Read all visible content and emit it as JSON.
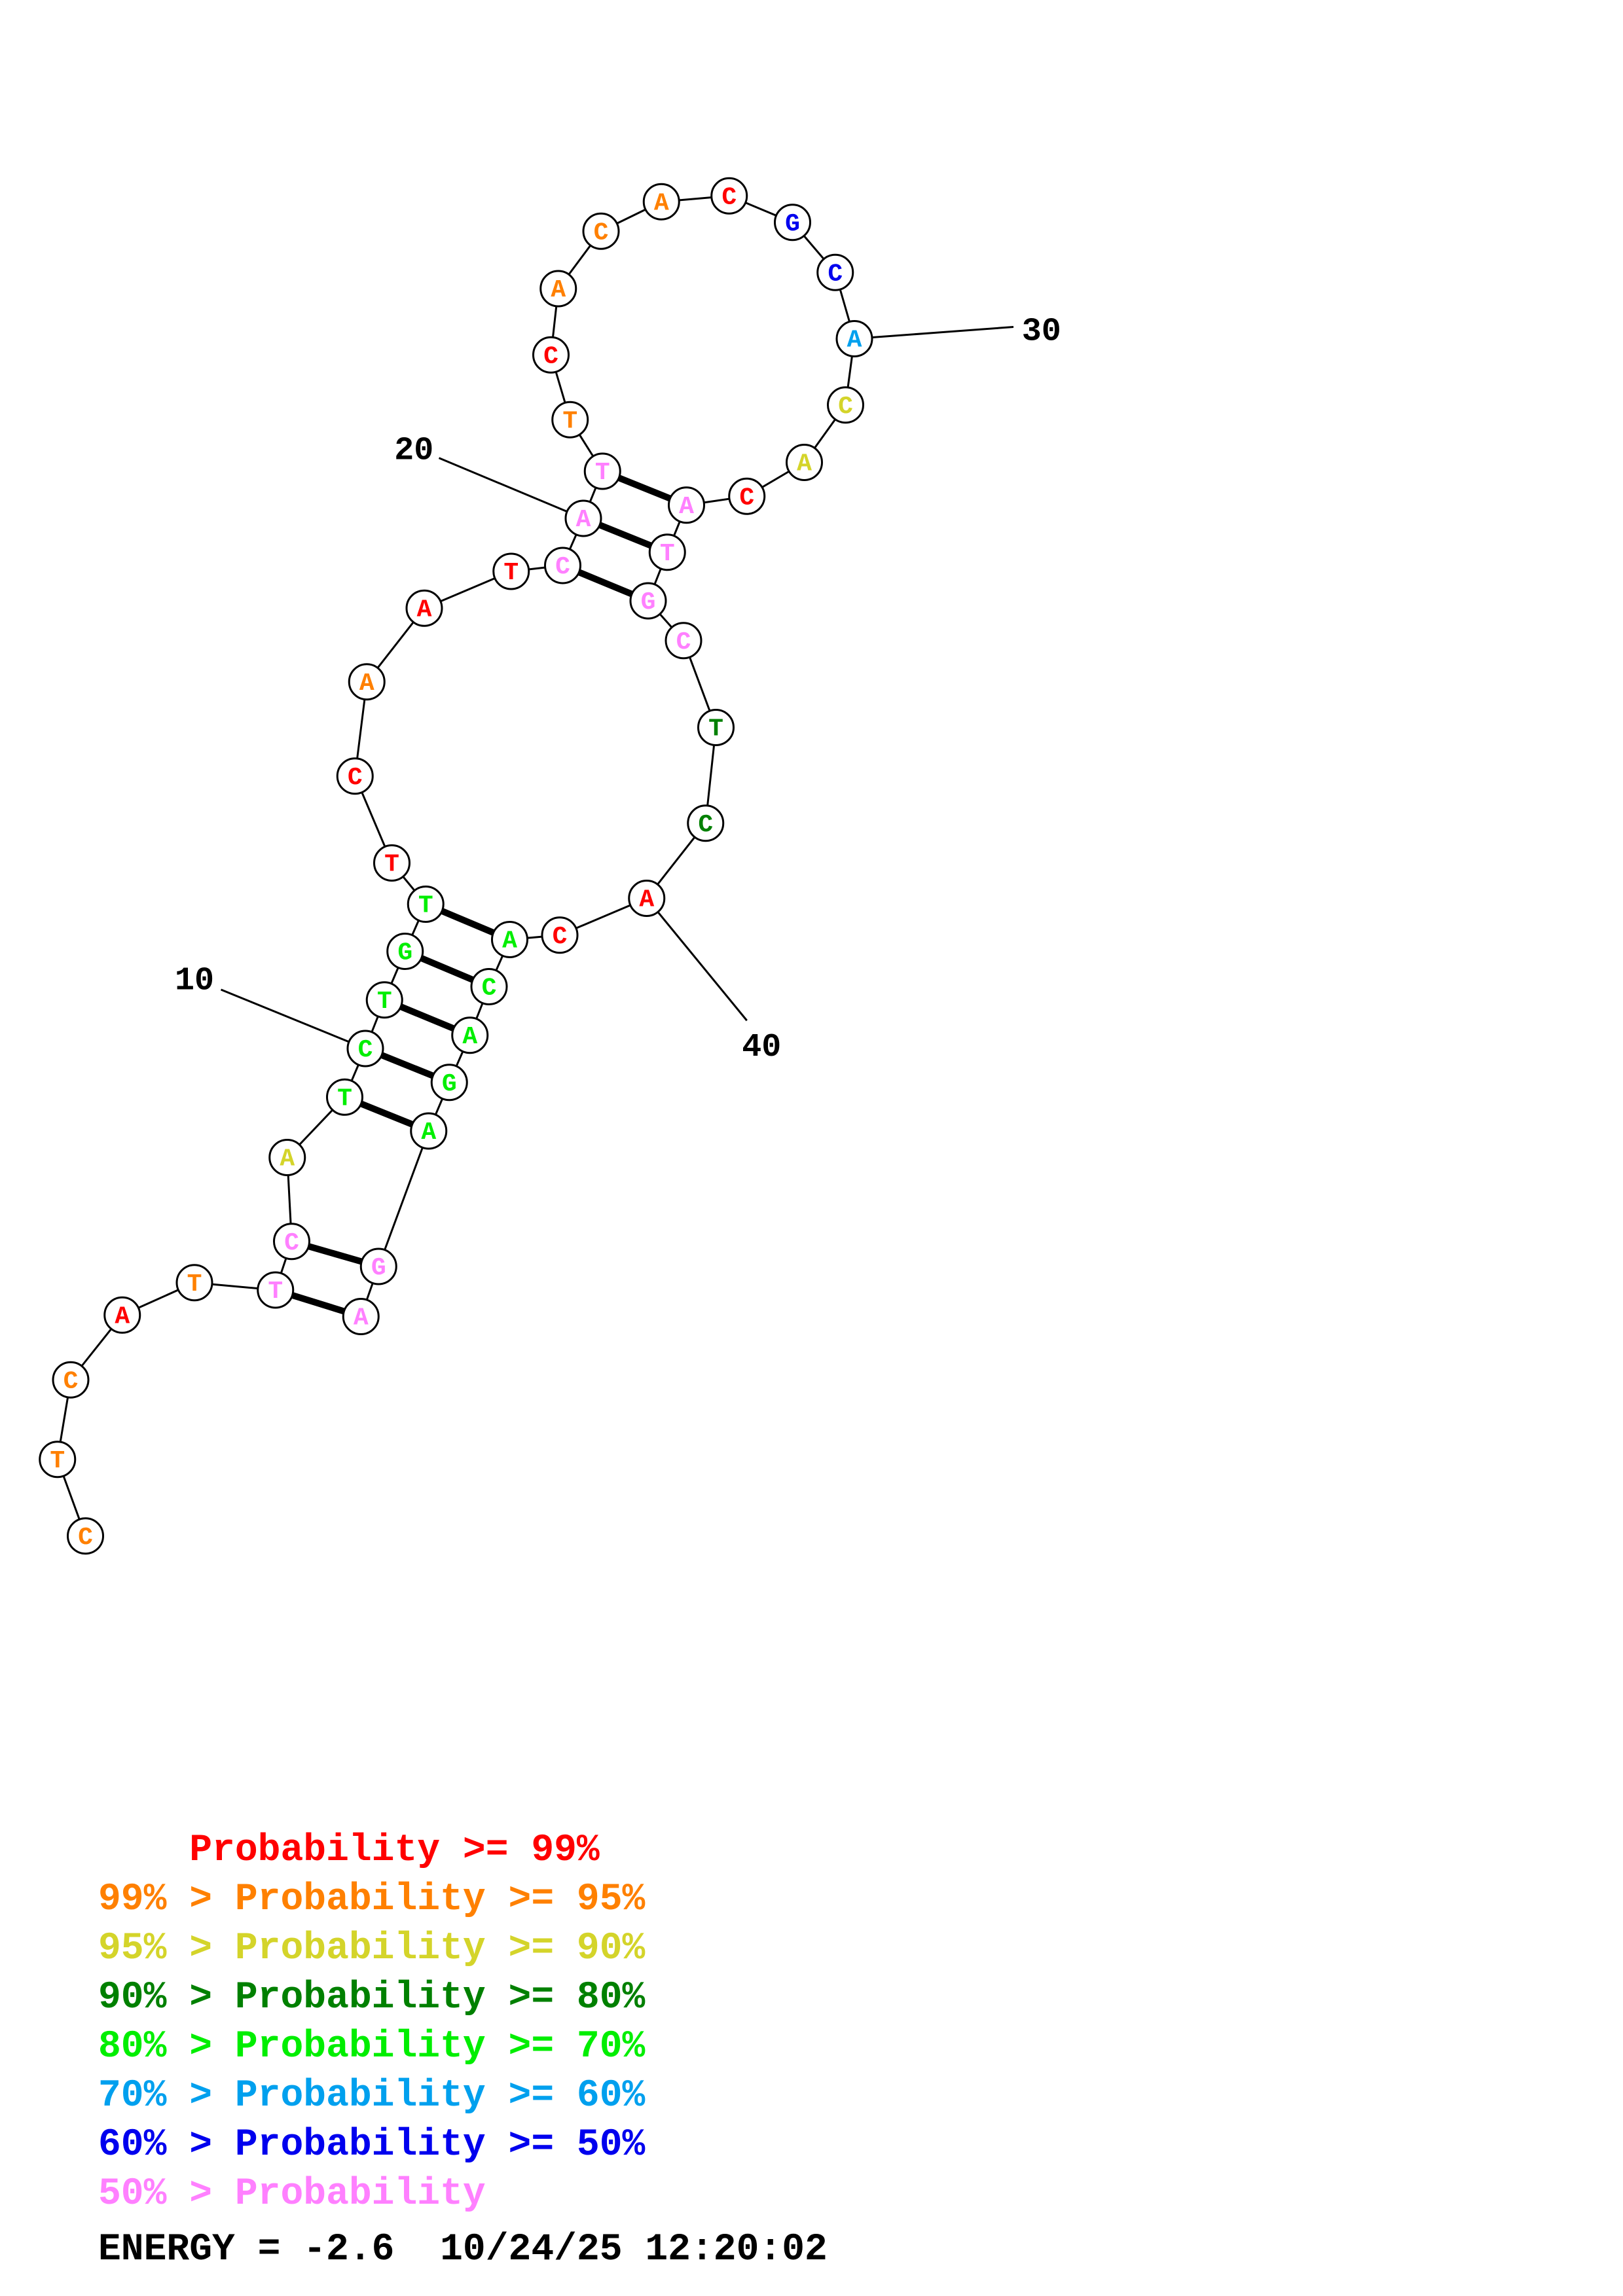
{
  "colors": {
    "p99": "#ff0000",
    "p95": "#ff8000",
    "p90": "#d4d42a",
    "p80": "#008000",
    "p70": "#00ee00",
    "p60": "#00a0ee",
    "p50": "#0000ee",
    "plow": "#ff80ff"
  },
  "nucleotides": [
    {
      "i": 1,
      "b": "C",
      "c": "p95"
    },
    {
      "i": 2,
      "b": "T",
      "c": "p95"
    },
    {
      "i": 3,
      "b": "C",
      "c": "p95"
    },
    {
      "i": 4,
      "b": "A",
      "c": "p99"
    },
    {
      "i": 5,
      "b": "T",
      "c": "p95"
    },
    {
      "i": 6,
      "b": "T",
      "c": "plow"
    },
    {
      "i": 7,
      "b": "C",
      "c": "plow"
    },
    {
      "i": 8,
      "b": "A",
      "c": "p90"
    },
    {
      "i": 9,
      "b": "T",
      "c": "p70"
    },
    {
      "i": 10,
      "b": "C",
      "c": "p70"
    },
    {
      "i": 11,
      "b": "T",
      "c": "p70"
    },
    {
      "i": 12,
      "b": "G",
      "c": "p70"
    },
    {
      "i": 13,
      "b": "T",
      "c": "p70"
    },
    {
      "i": 14,
      "b": "T",
      "c": "p99"
    },
    {
      "i": 15,
      "b": "C",
      "c": "p99"
    },
    {
      "i": 16,
      "b": "A",
      "c": "p95"
    },
    {
      "i": 17,
      "b": "A",
      "c": "p99"
    },
    {
      "i": 18,
      "b": "T",
      "c": "p99"
    },
    {
      "i": 19,
      "b": "C",
      "c": "plow"
    },
    {
      "i": 20,
      "b": "A",
      "c": "plow"
    },
    {
      "i": 21,
      "b": "T",
      "c": "plow"
    },
    {
      "i": 22,
      "b": "T",
      "c": "p95"
    },
    {
      "i": 23,
      "b": "C",
      "c": "p99"
    },
    {
      "i": 24,
      "b": "A",
      "c": "p95"
    },
    {
      "i": 25,
      "b": "C",
      "c": "p95"
    },
    {
      "i": 26,
      "b": "A",
      "c": "p95"
    },
    {
      "i": 27,
      "b": "C",
      "c": "p99"
    },
    {
      "i": 28,
      "b": "G",
      "c": "p50"
    },
    {
      "i": 29,
      "b": "C",
      "c": "p50"
    },
    {
      "i": 30,
      "b": "A",
      "c": "p60"
    },
    {
      "i": 31,
      "b": "C",
      "c": "p90"
    },
    {
      "i": 32,
      "b": "A",
      "c": "p90"
    },
    {
      "i": 33,
      "b": "C",
      "c": "p99"
    },
    {
      "i": 34,
      "b": "A",
      "c": "plow"
    },
    {
      "i": 35,
      "b": "T",
      "c": "plow"
    },
    {
      "i": 36,
      "b": "G",
      "c": "plow"
    },
    {
      "i": 37,
      "b": "C",
      "c": "plow"
    },
    {
      "i": 38,
      "b": "T",
      "c": "p80"
    },
    {
      "i": 39,
      "b": "C",
      "c": "p80"
    },
    {
      "i": 40,
      "b": "A",
      "c": "p99"
    },
    {
      "i": 41,
      "b": "C",
      "c": "p99"
    },
    {
      "i": 42,
      "b": "A",
      "c": "p70"
    },
    {
      "i": 43,
      "b": "C",
      "c": "p70"
    },
    {
      "i": 44,
      "b": "A",
      "c": "p70"
    },
    {
      "i": 45,
      "b": "G",
      "c": "p70"
    },
    {
      "i": 46,
      "b": "A",
      "c": "p70"
    },
    {
      "i": 47,
      "b": "G",
      "c": "plow"
    },
    {
      "i": 48,
      "b": "A",
      "c": "plow"
    }
  ],
  "pairs": [
    [
      6,
      48
    ],
    [
      7,
      47
    ],
    [
      9,
      46
    ],
    [
      10,
      45
    ],
    [
      11,
      44
    ],
    [
      12,
      43
    ],
    [
      13,
      42
    ],
    [
      19,
      36
    ],
    [
      20,
      35
    ],
    [
      21,
      34
    ]
  ],
  "position_labels": [
    {
      "i": 10,
      "text": "10"
    },
    {
      "i": 20,
      "text": "20"
    },
    {
      "i": 30,
      "text": "30"
    },
    {
      "i": 40,
      "text": "40"
    }
  ],
  "legend": [
    {
      "prefix": "    ",
      "text": "Probability >= 99%",
      "c": "p99"
    },
    {
      "prefix": "99% > ",
      "text": "Probability >= 95%",
      "c": "p95"
    },
    {
      "prefix": "95% > ",
      "text": "Probability >= 90%",
      "c": "p90"
    },
    {
      "prefix": "90% > ",
      "text": "Probability >= 80%",
      "c": "p80"
    },
    {
      "prefix": "80% > ",
      "text": "Probability >= 70%",
      "c": "p70"
    },
    {
      "prefix": "70% > ",
      "text": "Probability >= 60%",
      "c": "p60"
    },
    {
      "prefix": "60% > ",
      "text": "Probability >= 50%",
      "c": "p50"
    },
    {
      "prefix": "50% > ",
      "text": "Probability",
      "c": "plow"
    }
  ],
  "footer": {
    "energy": "ENERGY = -2.6",
    "timestamp": "10/24/25 12:20:02"
  }
}
